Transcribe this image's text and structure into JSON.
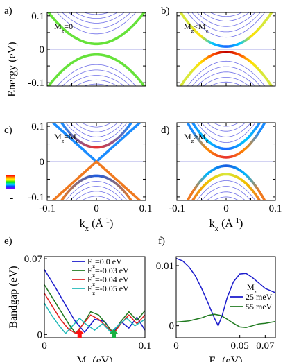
{
  "chart_data": [
    {
      "panel": "a)",
      "type": "line",
      "inset_label": {
        "main": "M",
        "sub": "z",
        "rest": "=0"
      },
      "ylabel": "Energy (eV)",
      "xlim": [
        -0.1,
        0.1
      ],
      "ylim": [
        -0.11,
        0.11
      ],
      "yticks": [
        "0.1",
        "0",
        "-0.1"
      ],
      "bands": [
        {
          "branch": "conduction",
          "edge": 0.016,
          "curv": 10.0,
          "colors": [
            "#66e23a"
          ]
        },
        {
          "branch": "valence",
          "edge": -0.016,
          "curv": -10.0,
          "colors": [
            "#66e23a"
          ]
        },
        {
          "branch": "conduction",
          "edge": 0.046,
          "curv": 10.0,
          "colors": [
            "#6f6fe8"
          ],
          "thin": true
        },
        {
          "branch": "conduction",
          "edge": 0.062,
          "curv": 10.0,
          "colors": [
            "#6f6fe8"
          ],
          "thin": true
        },
        {
          "branch": "conduction",
          "edge": 0.078,
          "curv": 10.0,
          "colors": [
            "#6f6fe8"
          ],
          "thin": true
        },
        {
          "branch": "conduction",
          "edge": 0.092,
          "curv": 10.0,
          "colors": [
            "#6f6fe8"
          ],
          "thin": true
        },
        {
          "branch": "conduction",
          "edge": 0.104,
          "curv": 10.0,
          "colors": [
            "#6f6fe8"
          ],
          "thin": true
        },
        {
          "branch": "valence",
          "edge": -0.046,
          "curv": -10.0,
          "colors": [
            "#6f6fe8"
          ],
          "thin": true
        },
        {
          "branch": "valence",
          "edge": -0.062,
          "curv": -10.0,
          "colors": [
            "#6f6fe8"
          ],
          "thin": true
        },
        {
          "branch": "valence",
          "edge": -0.078,
          "curv": -10.0,
          "colors": [
            "#6f6fe8"
          ],
          "thin": true
        },
        {
          "branch": "valence",
          "edge": -0.092,
          "curv": -10.0,
          "colors": [
            "#6f6fe8"
          ],
          "thin": true
        },
        {
          "branch": "valence",
          "edge": -0.104,
          "curv": -10.0,
          "colors": [
            "#6f6fe8"
          ],
          "thin": true
        }
      ]
    },
    {
      "panel": "b)",
      "type": "line",
      "inset_label": {
        "main": "M",
        "sub": "z",
        "rest": "<M",
        "sub2": "c"
      },
      "xlim": [
        -0.1,
        0.1
      ],
      "ylim": [
        -0.11,
        0.11
      ],
      "bands": [
        {
          "branch": "conduction",
          "edge": 0.008,
          "curv": 12.0,
          "colors": [
            "#1e66ff",
            "#00c8ff",
            "#ffe000",
            "#d8e83a"
          ]
        },
        {
          "branch": "valence",
          "edge": -0.008,
          "curv": -12.0,
          "colors": [
            "#c00000",
            "#ff5000",
            "#ffe000",
            "#d8e83a"
          ]
        },
        {
          "branch": "conduction",
          "edge": 0.036,
          "curv": 12.0,
          "colors": [
            "#6f6fe8"
          ],
          "thin": true
        },
        {
          "branch": "conduction",
          "edge": 0.052,
          "curv": 12.0,
          "colors": [
            "#6f6fe8"
          ],
          "thin": true
        },
        {
          "branch": "conduction",
          "edge": 0.068,
          "curv": 12.0,
          "colors": [
            "#6f6fe8"
          ],
          "thin": true
        },
        {
          "branch": "conduction",
          "edge": 0.084,
          "curv": 12.0,
          "colors": [
            "#6f6fe8"
          ],
          "thin": true
        },
        {
          "branch": "conduction",
          "edge": 0.098,
          "curv": 12.0,
          "colors": [
            "#6f6fe8"
          ],
          "thin": true
        },
        {
          "branch": "valence",
          "edge": -0.036,
          "curv": -12.0,
          "colors": [
            "#6f6fe8"
          ],
          "thin": true
        },
        {
          "branch": "valence",
          "edge": -0.052,
          "curv": -12.0,
          "colors": [
            "#6f6fe8"
          ],
          "thin": true
        },
        {
          "branch": "valence",
          "edge": -0.068,
          "curv": -12.0,
          "colors": [
            "#6f6fe8"
          ],
          "thin": true
        },
        {
          "branch": "valence",
          "edge": -0.084,
          "curv": -12.0,
          "colors": [
            "#6f6fe8"
          ],
          "thin": true
        },
        {
          "branch": "valence",
          "edge": -0.098,
          "curv": -12.0,
          "colors": [
            "#6f6fe8"
          ],
          "thin": true
        }
      ]
    },
    {
      "panel": "c)",
      "type": "line",
      "inset_label": {
        "main": "M",
        "sub": "z",
        "rest": "=M",
        "sub2": "c"
      },
      "xlabel": "k",
      "xlabel_sub": "x",
      "xlabel_rest": " (Å",
      "xlabel_sup": "-1",
      "xlabel_end": ")",
      "xlim": [
        -0.1,
        0.1
      ],
      "ylim": [
        -0.11,
        0.11
      ],
      "xticks": [
        "-0.1",
        "0",
        "0.1"
      ],
      "yticks": [
        "0.1",
        "0",
        "-0.1"
      ],
      "bands": [
        {
          "branch": "dirac-upper",
          "edge": 0.0,
          "slope": 1.25,
          "colors": [
            "#1a8cff"
          ]
        },
        {
          "branch": "dirac-lower",
          "edge": 0.0,
          "slope": -1.25,
          "colors": [
            "#f07a20"
          ]
        },
        {
          "branch": "conduction",
          "edge": 0.04,
          "curv": 14.0,
          "colors": [
            "#e83030",
            "#1a8cff"
          ]
        },
        {
          "branch": "valence",
          "edge": -0.04,
          "curv": -14.0,
          "colors": [
            "#1a5ae0",
            "#f07a20"
          ]
        },
        {
          "branch": "conduction",
          "edge": 0.056,
          "curv": 14.0,
          "colors": [
            "#6f6fe8"
          ],
          "thin": true
        },
        {
          "branch": "conduction",
          "edge": 0.07,
          "curv": 14.0,
          "colors": [
            "#6f6fe8"
          ],
          "thin": true
        },
        {
          "branch": "conduction",
          "edge": 0.084,
          "curv": 14.0,
          "colors": [
            "#6f6fe8"
          ],
          "thin": true
        },
        {
          "branch": "conduction",
          "edge": 0.098,
          "curv": 14.0,
          "colors": [
            "#6f6fe8"
          ],
          "thin": true
        },
        {
          "branch": "valence",
          "edge": -0.056,
          "curv": -14.0,
          "colors": [
            "#6f6fe8"
          ],
          "thin": true
        },
        {
          "branch": "valence",
          "edge": -0.07,
          "curv": -14.0,
          "colors": [
            "#6f6fe8"
          ],
          "thin": true
        },
        {
          "branch": "valence",
          "edge": -0.084,
          "curv": -14.0,
          "colors": [
            "#6f6fe8"
          ],
          "thin": true
        },
        {
          "branch": "valence",
          "edge": -0.098,
          "curv": -14.0,
          "colors": [
            "#6f6fe8"
          ],
          "thin": true
        }
      ]
    },
    {
      "panel": "d)",
      "type": "line",
      "inset_label": {
        "main": "M",
        "sub": "z",
        "rest": ">M",
        "sub2": "c"
      },
      "xlabel": "k",
      "xlabel_sub": "x",
      "xlabel_rest": " (Å",
      "xlabel_sup": "-1",
      "xlabel_end": ")",
      "xlim": [
        -0.1,
        0.1
      ],
      "ylim": [
        -0.11,
        0.11
      ],
      "xticks": [
        "-0.1",
        "0",
        "0.1"
      ],
      "bands": [
        {
          "branch": "conduction",
          "edge": 0.012,
          "curv": 16.0,
          "colors": [
            "#e83030",
            "#ff8c00",
            "#1a8cff"
          ]
        },
        {
          "branch": "valence",
          "edge": -0.012,
          "curv": -16.0,
          "colors": [
            "#1a5ae0",
            "#00b8ff",
            "#f07a20"
          ]
        },
        {
          "branch": "conduction",
          "edge": 0.036,
          "curv": 16.0,
          "colors": [
            "#1e66ff",
            "#00c8ff",
            "#1a8cff"
          ]
        },
        {
          "branch": "valence",
          "edge": -0.036,
          "curv": -16.0,
          "colors": [
            "#d8e83a",
            "#f0c000",
            "#f07a20"
          ]
        },
        {
          "branch": "conduction",
          "edge": 0.054,
          "curv": 16.0,
          "colors": [
            "#6f6fe8"
          ],
          "thin": true
        },
        {
          "branch": "conduction",
          "edge": 0.07,
          "curv": 16.0,
          "colors": [
            "#6f6fe8"
          ],
          "thin": true
        },
        {
          "branch": "conduction",
          "edge": 0.086,
          "curv": 16.0,
          "colors": [
            "#6f6fe8"
          ],
          "thin": true
        },
        {
          "branch": "conduction",
          "edge": 0.1,
          "curv": 16.0,
          "colors": [
            "#6f6fe8"
          ],
          "thin": true
        },
        {
          "branch": "valence",
          "edge": -0.054,
          "curv": -16.0,
          "colors": [
            "#6f6fe8"
          ],
          "thin": true
        },
        {
          "branch": "valence",
          "edge": -0.07,
          "curv": -16.0,
          "colors": [
            "#6f6fe8"
          ],
          "thin": true
        },
        {
          "branch": "valence",
          "edge": -0.086,
          "curv": -16.0,
          "colors": [
            "#6f6fe8"
          ],
          "thin": true
        },
        {
          "branch": "valence",
          "edge": -0.1,
          "curv": -16.0,
          "colors": [
            "#6f6fe8"
          ],
          "thin": true
        }
      ]
    },
    {
      "panel": "e)",
      "type": "line",
      "xlabel": "M",
      "xlabel_sub": "z",
      "xlabel_rest": " (eV)",
      "ylabel": "Bandgap (eV)",
      "xlim": [
        0,
        0.1
      ],
      "ylim": [
        -0.003,
        0.072
      ],
      "xticks": [
        {
          "v": 0,
          "t": "0"
        },
        {
          "v": 0.1,
          "t": "0.1"
        }
      ],
      "yticks": [
        {
          "v": 0.07,
          "t": "0.07"
        },
        {
          "v": 0,
          "t": "0"
        }
      ],
      "legend": {
        "position": "top-right",
        "entries": [
          {
            "main": "E",
            "sub": "z",
            "rest": "=0.0 eV"
          },
          {
            "main": "E",
            "sub": "z",
            "rest": "=-0.03 eV"
          },
          {
            "main": "E",
            "sub": "z",
            "rest": "=-0.04 eV"
          },
          {
            "main": "E",
            "sub": "z",
            "rest": "=-0.05 eV"
          }
        ]
      },
      "markers": [
        {
          "x": 0.035,
          "color": "#ff1010"
        },
        {
          "x": 0.069,
          "color": "#18b040"
        }
      ],
      "series": [
        {
          "color": "#1a1acc",
          "x": [
            0,
            0.01,
            0.02,
            0.03,
            0.04,
            0.05,
            0.06,
            0.068,
            0.076,
            0.084,
            0.092,
            0.1
          ],
          "y": [
            0.06,
            0.045,
            0.029,
            0.013,
            0.002,
            0.014,
            0.012,
            0.001,
            0.012,
            0.006,
            0.016,
            0.004
          ]
        },
        {
          "color": "#1f7a1f",
          "x": [
            0,
            0.008,
            0.016,
            0.024,
            0.031,
            0.038,
            0.046,
            0.054,
            0.062,
            0.069,
            0.076,
            0.084,
            0.092,
            0.1
          ],
          "y": [
            0.046,
            0.034,
            0.022,
            0.01,
            0.001,
            0.009,
            0.021,
            0.018,
            0.009,
            0.001,
            0.012,
            0.021,
            0.013,
            0.022
          ]
        },
        {
          "color": "#e02020",
          "x": [
            0,
            0.008,
            0.016,
            0.024,
            0.031,
            0.038,
            0.046,
            0.054,
            0.062,
            0.069,
            0.076,
            0.084,
            0.092,
            0.1
          ],
          "y": [
            0.038,
            0.026,
            0.014,
            0.005,
            0.001,
            0.009,
            0.018,
            0.014,
            0.007,
            0.001,
            0.01,
            0.018,
            0.01,
            0.018
          ]
        },
        {
          "color": "#20b8b8",
          "x": [
            0,
            0.007,
            0.014,
            0.021,
            0.028,
            0.035,
            0.042,
            0.05,
            0.058,
            0.066,
            0.074,
            0.082,
            0.09,
            0.1
          ],
          "y": [
            0.029,
            0.018,
            0.009,
            0.001,
            0.008,
            0.015,
            0.009,
            0.004,
            0.01,
            0.002,
            0.009,
            0.015,
            0.008,
            0.014
          ]
        }
      ]
    },
    {
      "panel": "f)",
      "type": "line",
      "xlabel": "E",
      "xlabel_sub": "z",
      "xlabel_rest": " (eV)",
      "xlim": [
        0,
        0.078
      ],
      "ylim": [
        -0.002,
        0.0115
      ],
      "xticks": [
        {
          "v": 0,
          "t": "0"
        },
        {
          "v": 0.05,
          "t": "0.05"
        },
        {
          "v": 0.07,
          "t": "0.07"
        }
      ],
      "yticks": [
        {
          "v": 0.01,
          "t": "0.01"
        },
        {
          "v": 0,
          "t": "0"
        }
      ],
      "legend": {
        "position": "right",
        "title": {
          "main": "M",
          "sub": "z"
        },
        "entries": [
          "25 meV",
          "55 meV"
        ]
      },
      "series": [
        {
          "name": "25 meV",
          "color": "#1a1acc",
          "x": [
            0,
            0.005,
            0.01,
            0.015,
            0.02,
            0.025,
            0.03,
            0.033,
            0.036,
            0.04,
            0.045,
            0.05,
            0.055,
            0.06,
            0.065,
            0.07,
            0.078
          ],
          "y": [
            0.0112,
            0.0108,
            0.0098,
            0.0083,
            0.0062,
            0.0038,
            0.0013,
            0.0,
            0.0016,
            0.0046,
            0.0073,
            0.0086,
            0.0087,
            0.008,
            0.0071,
            0.0062,
            0.0055
          ]
        },
        {
          "name": "55 meV",
          "color": "#1f7a1f",
          "x": [
            0,
            0.01,
            0.02,
            0.025,
            0.03,
            0.035,
            0.04,
            0.045,
            0.05,
            0.055,
            0.06,
            0.065,
            0.07,
            0.078
          ],
          "y": [
            0.0006,
            0.0008,
            0.0013,
            0.0017,
            0.0019,
            0.0017,
            0.0011,
            0.0004,
            -0.0002,
            -0.0003,
            0.0,
            0.0003,
            0.0004,
            0.0007
          ]
        }
      ]
    }
  ],
  "colorbar": {
    "plus": "+",
    "minus": "-",
    "colors": [
      "#ff0000",
      "#ffaa00",
      "#ffff00",
      "#00e000",
      "#00e0ff",
      "#0040ff",
      "#8000ff"
    ]
  }
}
